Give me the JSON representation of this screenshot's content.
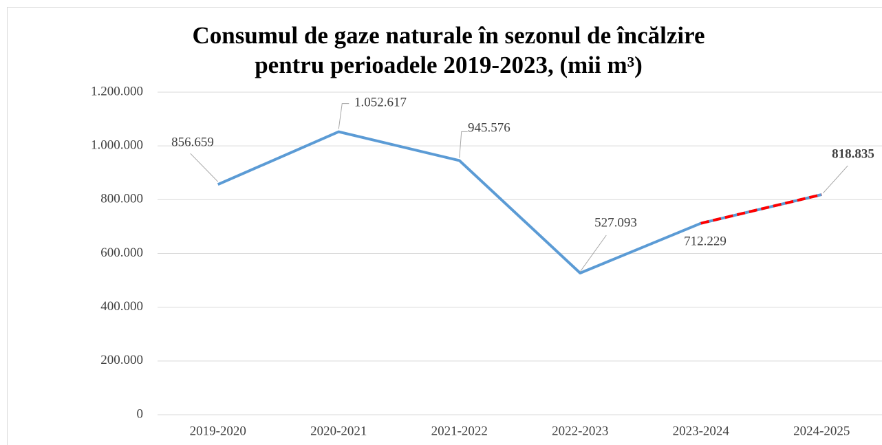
{
  "chart_data": {
    "type": "line",
    "title": [
      "Consumul de gaze naturale în sezonul de încălzire",
      "pentru perioadele 2019-2023, (mii m³)"
    ],
    "categories": [
      "2019-2020",
      "2020-2021",
      "2021-2022",
      "2022-2023",
      "2023-2024",
      "2024-2025"
    ],
    "series": [
      {
        "color": "#5b9bd5",
        "values": [
          856659,
          1052617,
          945576,
          527093,
          712229,
          818835
        ],
        "value_labels": [
          "856.659",
          "1.052.617",
          "945.576",
          "527.093",
          "712.229",
          "818.835"
        ]
      }
    ],
    "projected_from": 4,
    "projection_color": "#ff0000",
    "ylim": [
      0,
      1200000
    ],
    "yticks": [
      0,
      {
        "value": 200000,
        "label": "200.000"
      },
      {
        "value": 400000,
        "label": "400.000"
      },
      {
        "value": 600000,
        "label": "600.000"
      },
      {
        "value": 800000,
        "label": "800.000"
      },
      {
        "value": 1000000,
        "label": "1.000.000"
      },
      {
        "value": 1200000,
        "label": "1.200.000"
      }
    ],
    "grid": true
  }
}
